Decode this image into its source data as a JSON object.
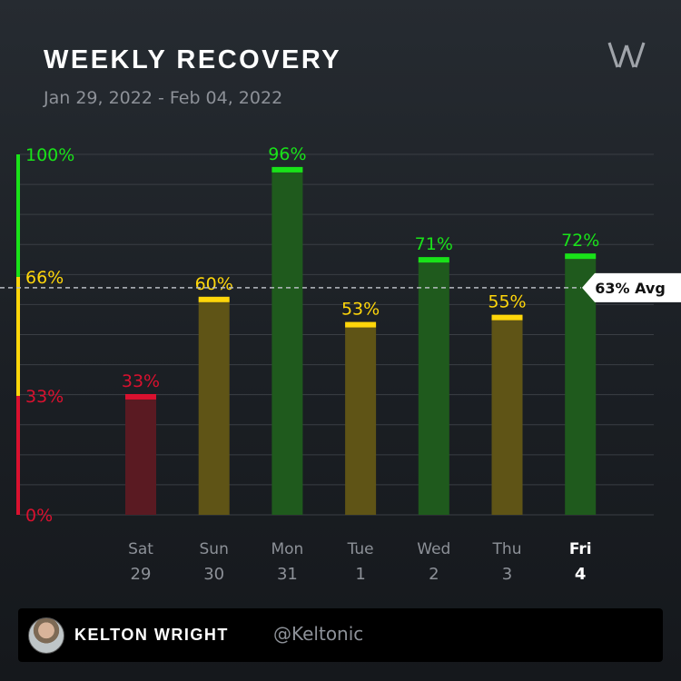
{
  "header": {
    "title": "WEEKLY RECOVERY",
    "date_range": "Jan 29, 2022 - Feb 04, 2022",
    "logo_icon": "whoop-logo-icon"
  },
  "chart_data": {
    "type": "bar",
    "ylim": [
      0,
      100
    ],
    "y_ticks": [
      {
        "value": 100,
        "label": "100%"
      },
      {
        "value": 66,
        "label": "66%"
      },
      {
        "value": 33,
        "label": "33%"
      },
      {
        "value": 0,
        "label": "0%"
      }
    ],
    "zones": [
      {
        "from": 0,
        "to": 33,
        "color": "#d9112f"
      },
      {
        "from": 33,
        "to": 66,
        "color": "#ffd60a"
      },
      {
        "from": 66,
        "to": 100,
        "color": "#19e219"
      }
    ],
    "categories": [
      {
        "day": "Sat",
        "date": "29",
        "value": 33,
        "label": "33%",
        "zone": "red"
      },
      {
        "day": "Sun",
        "date": "30",
        "value": 60,
        "label": "60%",
        "zone": "yellow"
      },
      {
        "day": "Mon",
        "date": "31",
        "value": 96,
        "label": "96%",
        "zone": "green"
      },
      {
        "day": "Tue",
        "date": "1",
        "value": 53,
        "label": "53%",
        "zone": "yellow"
      },
      {
        "day": "Wed",
        "date": "2",
        "value": 71,
        "label": "71%",
        "zone": "green"
      },
      {
        "day": "Thu",
        "date": "3",
        "value": 55,
        "label": "55%",
        "zone": "yellow"
      },
      {
        "day": "Fri",
        "date": "4",
        "value": 72,
        "label": "72%",
        "zone": "green",
        "highlight": true
      }
    ],
    "average": {
      "value": 63,
      "label": "63% Avg"
    },
    "colors": {
      "red": "#d9112f",
      "yellow": "#ffd60a",
      "green": "#19e219",
      "red_fill": "#5a1a22",
      "yellow_fill": "#5f5416",
      "green_fill": "#1f5a1d",
      "grid": "#3a3e44",
      "axis_label": "#8d9198"
    }
  },
  "footer": {
    "avatar_icon": "user-avatar",
    "name": "KELTON WRIGHT",
    "handle": "@Keltonic"
  }
}
